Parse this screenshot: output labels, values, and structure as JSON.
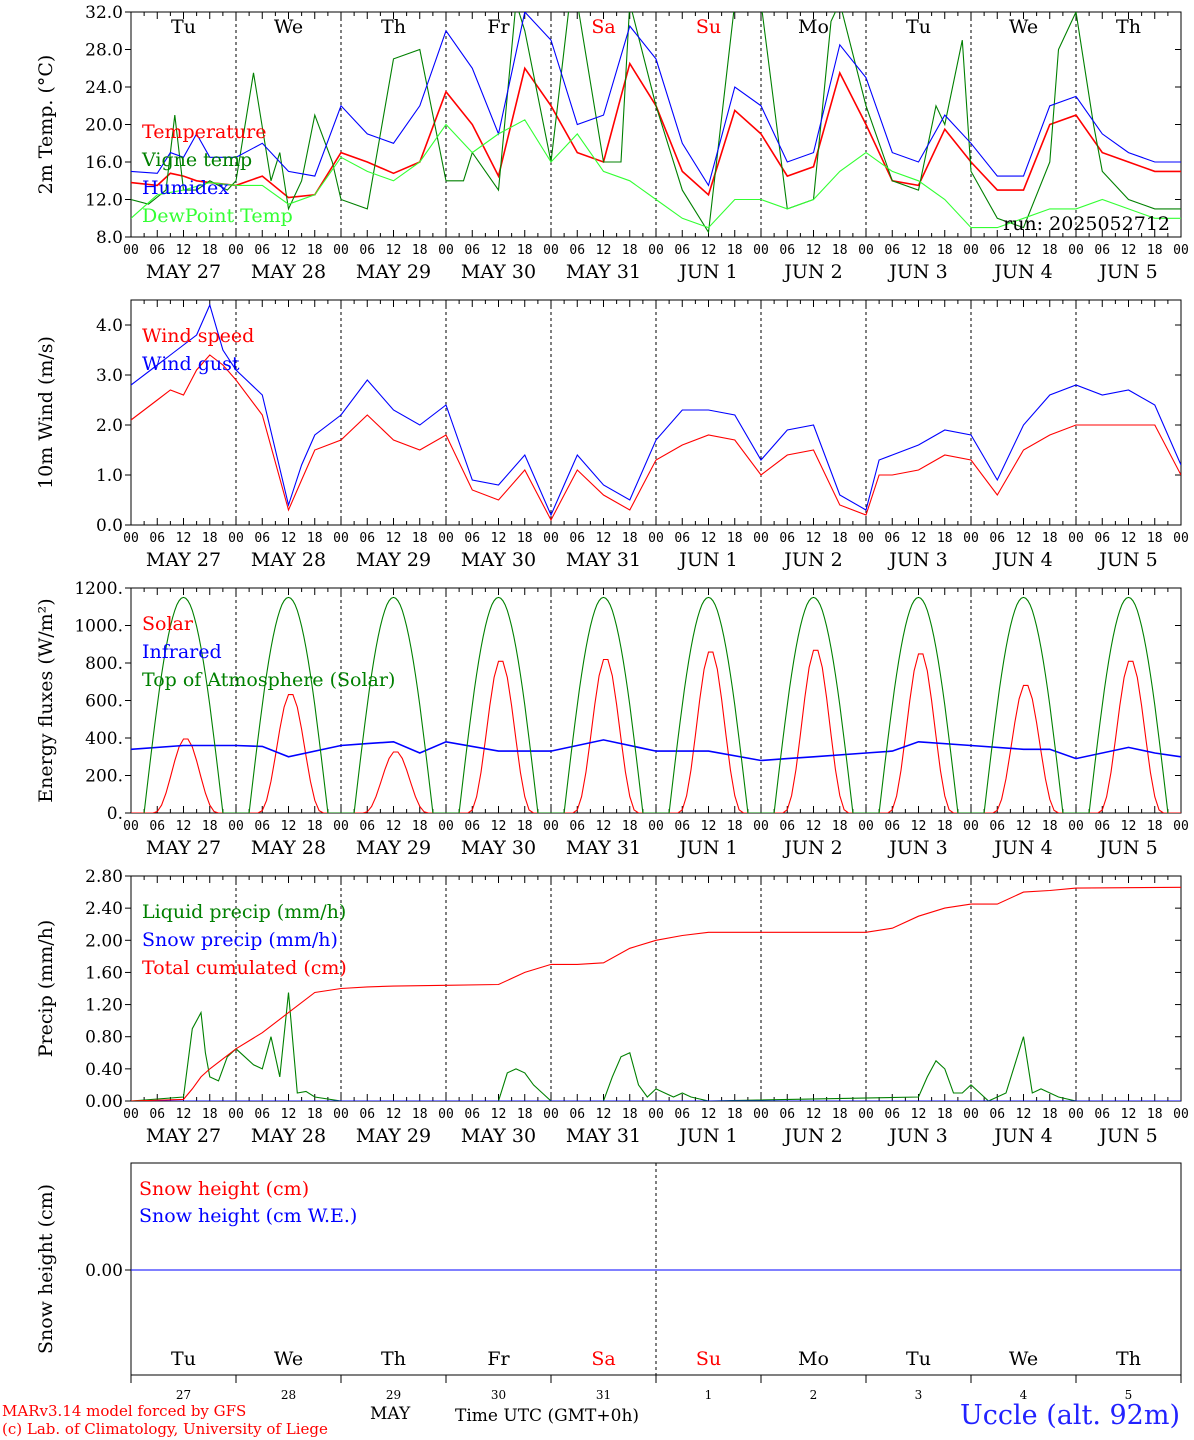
{
  "run_label": "run: 2025052712",
  "footer": {
    "credit_line1": "MARv3.14 model forced by GFS",
    "credit_line2": "(c) Lab. of Climatology, University of Liege",
    "month_label": "MAY",
    "xlabel": "Time UTC (GMT+0h)",
    "site": "Uccle (alt. 92m)"
  },
  "day_abbrev": [
    "Tu",
    "We",
    "Th",
    "Fr",
    "Sa",
    "Su",
    "Mo",
    "Tu",
    "We",
    "Th"
  ],
  "day_abbrev_colors": [
    "#000000",
    "#000000",
    "#000000",
    "#000000",
    "#ff0000",
    "#ff0000",
    "#000000",
    "#000000",
    "#000000",
    "#000000"
  ],
  "day_numbers": [
    "27",
    "28",
    "29",
    "30",
    "31",
    "1",
    "2",
    "3",
    "4",
    "5"
  ],
  "date_labels": [
    "MAY 27",
    "MAY 28",
    "MAY 29",
    "MAY 30",
    "MAY 31",
    "JUN  1",
    "JUN  2",
    "JUN  3",
    "JUN  4",
    "JUN  5"
  ],
  "hour_ticks": [
    "00",
    "06",
    "12",
    "18"
  ],
  "final_tick": "00",
  "chart_data": [
    {
      "type": "line",
      "ylabel": "2m Temp. (°C)",
      "ylim": [
        8,
        32
      ],
      "yticks": [
        "8.0",
        "12.0",
        "16.0",
        "20.0",
        "24.0",
        "28.0",
        "32.0"
      ],
      "x_unit": "hours since MAY 27 00 UTC",
      "series": [
        {
          "name": "Temperature",
          "color": "#ff0000",
          "x": [
            0,
            6,
            9,
            12,
            15,
            18,
            24,
            30,
            36,
            42,
            48,
            54,
            60,
            66,
            72,
            78,
            84,
            90,
            96,
            102,
            108,
            114,
            120,
            126,
            132,
            138,
            144,
            150,
            156,
            162,
            168,
            174,
            180,
            186,
            192,
            198,
            204,
            210,
            216,
            222,
            228,
            234,
            240
          ],
          "y": [
            13.8,
            13.5,
            14.8,
            14.5,
            14,
            13.8,
            13.5,
            14.5,
            12.2,
            12.5,
            17,
            16,
            14.8,
            16,
            23.5,
            20,
            14.5,
            26,
            22,
            17,
            16,
            26.5,
            22,
            15,
            12.5,
            21.5,
            19,
            14.5,
            15.5,
            25.5,
            20,
            14,
            13.5,
            19.5,
            16,
            13,
            13,
            20,
            21,
            17,
            16,
            15,
            15
          ]
        },
        {
          "name": "Vigne temp",
          "color": "#008000",
          "x": [
            0,
            4,
            8,
            10,
            12,
            15,
            18,
            22,
            24,
            28,
            32,
            34,
            36,
            39,
            42,
            46,
            48,
            54,
            60,
            66,
            72,
            76,
            78,
            84,
            88,
            90,
            96,
            100,
            102,
            108,
            112,
            114,
            120,
            126,
            132,
            138,
            144,
            150,
            156,
            160,
            162,
            168,
            174,
            180,
            184,
            186,
            190,
            192,
            198,
            204,
            210,
            212,
            216,
            220,
            222,
            228,
            234,
            240
          ],
          "y": [
            12,
            11.5,
            13,
            21,
            13,
            13,
            14,
            13,
            14,
            25.5,
            14,
            17,
            11,
            14,
            21,
            16,
            12,
            11,
            27,
            28,
            14,
            14,
            17,
            13,
            33,
            30,
            16,
            32,
            33,
            16,
            16,
            33,
            22,
            13,
            8.5,
            33,
            33,
            11,
            12,
            31,
            33,
            22,
            14,
            13,
            22,
            20,
            29,
            15,
            10,
            9,
            16,
            28,
            32,
            20,
            15,
            12,
            11,
            11
          ]
        },
        {
          "name": "Humidex",
          "color": "#0000ff",
          "x": [
            0,
            6,
            9,
            12,
            15,
            18,
            24,
            30,
            36,
            42,
            48,
            54,
            60,
            66,
            72,
            78,
            84,
            90,
            96,
            102,
            108,
            114,
            120,
            126,
            132,
            138,
            144,
            150,
            156,
            162,
            168,
            174,
            180,
            186,
            192,
            198,
            204,
            210,
            216,
            222,
            228,
            234,
            240
          ],
          "y": [
            15,
            14.8,
            17,
            16.5,
            19,
            16.5,
            16.5,
            18,
            15,
            14.5,
            22,
            19,
            18,
            22,
            30,
            26,
            19,
            32,
            29,
            20,
            21,
            30.5,
            27,
            18,
            13.5,
            24,
            22,
            16,
            17,
            28.5,
            25,
            17,
            16,
            21,
            18,
            14.5,
            14.5,
            22,
            23,
            19,
            17,
            16,
            16
          ]
        },
        {
          "name": "DewPoint Temp",
          "color": "#33ff33",
          "x": [
            0,
            6,
            12,
            18,
            24,
            30,
            36,
            42,
            48,
            54,
            60,
            66,
            72,
            78,
            84,
            90,
            96,
            102,
            108,
            114,
            120,
            126,
            132,
            138,
            144,
            150,
            156,
            162,
            168,
            174,
            180,
            186,
            192,
            198,
            204,
            210,
            216,
            222,
            228,
            234,
            240
          ],
          "y": [
            10,
            12.5,
            13,
            13.8,
            13.5,
            13.5,
            11.5,
            12.5,
            16.5,
            15,
            14,
            16,
            20,
            17,
            19,
            20.5,
            16,
            19,
            15,
            14,
            12,
            10,
            9,
            12,
            12,
            11,
            12,
            15,
            17,
            15,
            14,
            12,
            9,
            9,
            10,
            11,
            11,
            12,
            11,
            10,
            10
          ]
        }
      ]
    },
    {
      "type": "line",
      "ylabel": "10m Wind (m/s)",
      "ylim": [
        0,
        4.5
      ],
      "yticks": [
        "0.0",
        "1.0",
        "2.0",
        "3.0",
        "4.0"
      ],
      "series": [
        {
          "name": "Wind speed",
          "color": "#ff0000",
          "x": [
            0,
            6,
            9,
            12,
            15,
            18,
            21,
            24,
            30,
            36,
            39,
            42,
            48,
            54,
            60,
            66,
            72,
            78,
            84,
            90,
            96,
            99,
            102,
            108,
            114,
            120,
            126,
            132,
            138,
            144,
            150,
            156,
            162,
            168,
            171,
            174,
            180,
            186,
            192,
            198,
            204,
            210,
            216,
            222,
            228,
            234,
            240
          ],
          "y": [
            2.1,
            2.5,
            2.7,
            2.6,
            3.1,
            3.4,
            3.2,
            2.9,
            2.2,
            0.3,
            0.9,
            1.5,
            1.7,
            2.2,
            1.7,
            1.5,
            1.8,
            0.7,
            0.5,
            1.1,
            0.1,
            0.6,
            1.1,
            0.6,
            0.3,
            1.3,
            1.6,
            1.8,
            1.7,
            1.0,
            1.4,
            1.5,
            0.4,
            0.2,
            1.0,
            1.0,
            1.1,
            1.4,
            1.3,
            0.6,
            1.5,
            1.8,
            2.0,
            2.0,
            2.0,
            2.0,
            1.0
          ]
        },
        {
          "name": "Wind gust",
          "color": "#0000ff",
          "x": [
            0,
            6,
            9,
            12,
            15,
            18,
            21,
            24,
            30,
            36,
            39,
            42,
            48,
            54,
            60,
            66,
            72,
            78,
            84,
            90,
            96,
            99,
            102,
            108,
            114,
            120,
            126,
            132,
            138,
            144,
            150,
            156,
            162,
            168,
            171,
            174,
            180,
            186,
            192,
            198,
            204,
            210,
            216,
            222,
            228,
            234,
            240
          ],
          "y": [
            2.8,
            3.2,
            3.4,
            3.6,
            3.8,
            4.4,
            3.5,
            3.1,
            2.6,
            0.4,
            1.2,
            1.8,
            2.2,
            2.9,
            2.3,
            2.0,
            2.4,
            0.9,
            0.8,
            1.4,
            0.2,
            0.8,
            1.4,
            0.8,
            0.5,
            1.7,
            2.3,
            2.3,
            2.2,
            1.3,
            1.9,
            2.0,
            0.6,
            0.3,
            1.3,
            1.4,
            1.6,
            1.9,
            1.8,
            0.9,
            2.0,
            2.6,
            2.8,
            2.6,
            2.7,
            2.4,
            1.2
          ]
        }
      ]
    },
    {
      "type": "line",
      "ylabel": "Energy fluxes (W/m²)",
      "ylim": [
        0,
        1200
      ],
      "yticks": [
        "0.",
        "200.",
        "400.",
        "600.",
        "800.",
        "1000.",
        "1200."
      ],
      "series": [
        {
          "name": "Solar",
          "color": "#ff0000",
          "peaks": [
            400,
            640,
            330,
            820,
            830,
            870,
            880,
            860,
            690,
            820
          ]
        },
        {
          "name": "Infrared",
          "color": "#0000ff",
          "x": [
            0,
            12,
            24,
            30,
            36,
            48,
            54,
            60,
            66,
            72,
            84,
            96,
            108,
            120,
            132,
            144,
            150,
            156,
            168,
            174,
            180,
            192,
            204,
            210,
            216,
            228,
            234,
            240
          ],
          "y": [
            340,
            360,
            360,
            355,
            300,
            360,
            370,
            380,
            320,
            380,
            330,
            330,
            390,
            330,
            330,
            280,
            290,
            300,
            320,
            330,
            380,
            360,
            340,
            340,
            290,
            350,
            320,
            300
          ]
        },
        {
          "name": "Top of Atmosphere (Solar)",
          "color": "#008000",
          "peak": 1150
        }
      ]
    },
    {
      "type": "line",
      "ylabel": "Precip (mm/h)",
      "ylim": [
        0,
        2.8
      ],
      "yticks": [
        "0.00",
        "0.40",
        "0.80",
        "1.20",
        "1.60",
        "2.00",
        "2.40",
        "2.80"
      ],
      "series": [
        {
          "name": "Liquid precip (mm/h)",
          "color": "#008000",
          "x": [
            0,
            12,
            14,
            16,
            17,
            18,
            20,
            22,
            24,
            26,
            28,
            30,
            32,
            34,
            36,
            38,
            40,
            42,
            48,
            84,
            86,
            88,
            90,
            92,
            94,
            96,
            108,
            110,
            112,
            114,
            116,
            118,
            120,
            122,
            124,
            126,
            128,
            132,
            180,
            182,
            184,
            186,
            188,
            190,
            192,
            194,
            196,
            200,
            204,
            206,
            208,
            212,
            216,
            240
          ],
          "y": [
            0,
            0.05,
            0.9,
            1.1,
            0.6,
            0.3,
            0.25,
            0.55,
            0.65,
            0.55,
            0.45,
            0.4,
            0.8,
            0.3,
            1.35,
            0.1,
            0.12,
            0.05,
            0,
            0,
            0.35,
            0.4,
            0.35,
            0.2,
            0.1,
            0,
            0,
            0.3,
            0.55,
            0.6,
            0.2,
            0.05,
            0.15,
            0.1,
            0.05,
            0.1,
            0.05,
            0,
            0.05,
            0.3,
            0.5,
            0.4,
            0.1,
            0.1,
            0.2,
            0.1,
            0,
            0.1,
            0.8,
            0.1,
            0.15,
            0.05,
            0,
            0
          ]
        },
        {
          "name": "Snow precip (mm/h)",
          "color": "#0000ff",
          "x": [
            0,
            240
          ],
          "y": [
            0,
            0
          ]
        },
        {
          "name": "Total cumulated (cm)",
          "color": "#ff0000",
          "x": [
            0,
            12,
            14,
            16,
            18,
            24,
            30,
            36,
            42,
            48,
            54,
            60,
            72,
            84,
            90,
            96,
            102,
            108,
            114,
            120,
            126,
            132,
            144,
            156,
            168,
            174,
            180,
            186,
            192,
            198,
            204,
            210,
            216,
            240
          ],
          "y": [
            0,
            0.02,
            0.15,
            0.3,
            0.4,
            0.65,
            0.85,
            1.1,
            1.35,
            1.4,
            1.42,
            1.43,
            1.44,
            1.45,
            1.6,
            1.7,
            1.7,
            1.72,
            1.9,
            2.0,
            2.06,
            2.1,
            2.1,
            2.1,
            2.1,
            2.15,
            2.3,
            2.4,
            2.45,
            2.45,
            2.6,
            2.62,
            2.65,
            2.66
          ]
        }
      ]
    },
    {
      "type": "line",
      "ylabel": "Snow height (cm)",
      "yticks": [
        "0.00"
      ],
      "series": [
        {
          "name": "Snow height (cm)",
          "color": "#ff0000",
          "x": [
            0,
            240
          ],
          "y": [
            0,
            0
          ]
        },
        {
          "name": "Snow height (cm W.E.)",
          "color": "#0000ff",
          "x": [
            0,
            240
          ],
          "y": [
            0,
            0
          ]
        }
      ]
    }
  ]
}
